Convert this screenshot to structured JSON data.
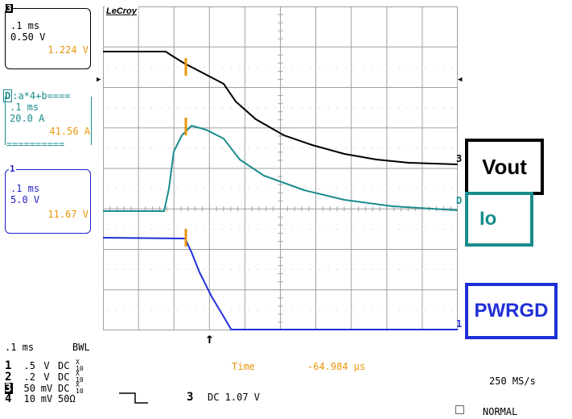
{
  "channel_panels": [
    {
      "id": "3",
      "tag": "3",
      "line1": ".1 ms",
      "line2": "0.50 V",
      "value": "1.224 V",
      "border_color": "#000000",
      "text_color": "#000000",
      "value_color": "#e8960c"
    },
    {
      "id": "D",
      "tag": "D",
      "header": ":a*4+b====",
      "line1": ".1 ms",
      "line2": "20.0 A",
      "value": "41.56 A",
      "footer": "==========",
      "border_color": "#1a8c8c",
      "text_color": "#1a8c8c",
      "value_color": "#e8960c"
    },
    {
      "id": "1",
      "tag": "1",
      "line1": ".1 ms",
      "line2": "5.0 V",
      "value": "11.67 V",
      "border_color": "#2020c8",
      "text_color": "#2020c8",
      "value_color": "#e8960c"
    }
  ],
  "screen": {
    "brand": "LeCroy",
    "trace_labels": {
      "vout": "3",
      "io": "D",
      "pwrgd": "1"
    },
    "colors": {
      "grid": "#a0a0a0",
      "vout": "#000000",
      "io": "#1a8c8c",
      "pwrgd": "#1f2fd6",
      "cursor": "#e8960c"
    }
  },
  "legends": {
    "vout": {
      "label": "Vout",
      "color": "#000000"
    },
    "io": {
      "label": "Io",
      "color": "#1a8c8c"
    },
    "pwrgd": {
      "label": "PWRGD",
      "color": "#1f2fd6"
    }
  },
  "bottom": {
    "timebase": ".1 ms",
    "bwl": "BWL",
    "channels": [
      {
        "num": "1",
        "volts": ".5",
        "unit": "V",
        "coupling": "DC",
        "probe_top": "X",
        "probe_bot": "10"
      },
      {
        "num": "2",
        "volts": ".2",
        "unit": "V",
        "coupling": "DC",
        "probe_top": "X",
        "probe_bot": "10"
      },
      {
        "num": "3",
        "volts": "50",
        "unit": "mV",
        "coupling": "DC",
        "probe_top": "X",
        "probe_bot": "10"
      },
      {
        "num": "4",
        "volts": "10",
        "unit": "mV",
        "coupling": "50Ω",
        "probe_top": "",
        "probe_bot": ""
      }
    ],
    "time_label": "Time",
    "time_value": "-64.984 µs",
    "trigger_channel": "3",
    "trigger_level": "DC 1.07 V",
    "sample_rate": "250 MS/s",
    "trigger_mode": "NORMAL",
    "accent_color": "#e8960c"
  }
}
